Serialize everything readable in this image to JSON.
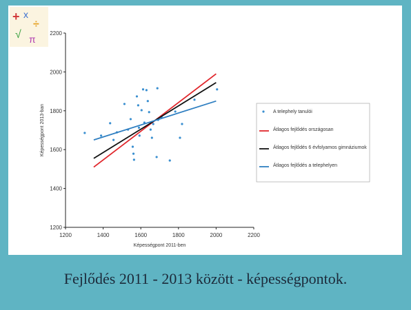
{
  "caption": "Fejlődés 2011 - 2013 között - képességpontok.",
  "chart_data": {
    "type": "scatter",
    "x_label": "Képességpont 2011-ben",
    "y_label": "Képességpont 2013-ban",
    "xlim": [
      1200,
      2200
    ],
    "xticks": [
      1200,
      1400,
      1600,
      1800,
      2000,
      2200
    ],
    "ylim": [
      1200,
      2200
    ],
    "yticks": [
      1200,
      1400,
      1600,
      1800,
      2000,
      2200
    ],
    "grid": false,
    "legend": "right",
    "series": [
      {
        "name": "A telephely tanulói",
        "kind": "points",
        "color": "#3a8fd0",
        "x": [
          1302,
          1389,
          1437,
          1455,
          1473,
          1513,
          1532,
          1546,
          1557,
          1561,
          1564,
          1579,
          1586,
          1590,
          1593,
          1604,
          1612,
          1619,
          1630,
          1637,
          1644,
          1652,
          1659,
          1666,
          1684,
          1688,
          1692,
          1710,
          1754,
          1783,
          1808,
          1819,
          1885,
          2005
        ],
        "values": [
          1686,
          1672,
          1736,
          1650,
          1689,
          1835,
          1703,
          1757,
          1615,
          1579,
          1548,
          1874,
          1828,
          1713,
          1672,
          1803,
          1910,
          1739,
          1906,
          1850,
          1793,
          1703,
          1661,
          1732,
          1562,
          1916,
          1753,
          1767,
          1544,
          1796,
          1661,
          1732,
          1857,
          1910
        ]
      },
      {
        "name": "Átlagos fejlődés országosan",
        "kind": "line",
        "color": "#e0262b",
        "x": [
          1350,
          2000
        ],
        "values": [
          1510,
          1990
        ]
      },
      {
        "name": "Átlagos fejlődés 6 évfolyamos gimnáziumok",
        "kind": "line",
        "color": "#111111",
        "x": [
          1350,
          2000
        ],
        "values": [
          1555,
          1945
        ]
      },
      {
        "name": "Átlagos fejlődés a telephelyen",
        "kind": "line",
        "color": "#2f7fc1",
        "x": [
          1350,
          2000
        ],
        "values": [
          1650,
          1850
        ]
      }
    ]
  }
}
